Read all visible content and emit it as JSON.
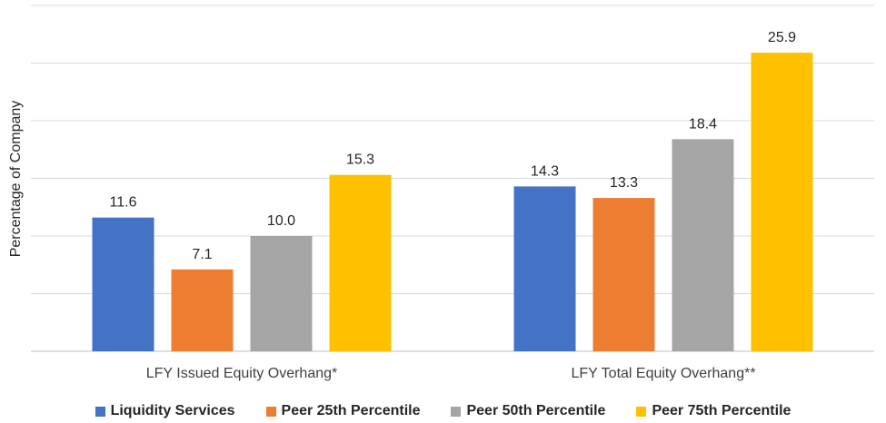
{
  "chart_data": {
    "type": "bar",
    "ylabel": "Percentage of Company",
    "ylim": [
      0,
      30
    ],
    "ytick_step": 5,
    "show_ytick_labels": false,
    "grid": true,
    "legend_position": "bottom",
    "categories": [
      "LFY Issued Equity Overhang*",
      "LFY Total Equity Overhang**"
    ],
    "series": [
      {
        "name": "Liquidity Services",
        "color": "#4472C4",
        "values": [
          11.6,
          14.3
        ],
        "labels": [
          "11.6",
          "14.3"
        ]
      },
      {
        "name": "Peer 25th Percentile",
        "color": "#ED7D31",
        "values": [
          7.1,
          13.3
        ],
        "labels": [
          "7.1",
          "13.3"
        ]
      },
      {
        "name": "Peer 50th Percentile",
        "color": "#A5A5A5",
        "values": [
          10.0,
          18.4
        ],
        "labels": [
          "10.0",
          "18.4"
        ]
      },
      {
        "name": "Peer 75th Percentile",
        "color": "#FFC000",
        "values": [
          15.3,
          25.9
        ],
        "labels": [
          "15.3",
          "25.9"
        ]
      }
    ]
  }
}
